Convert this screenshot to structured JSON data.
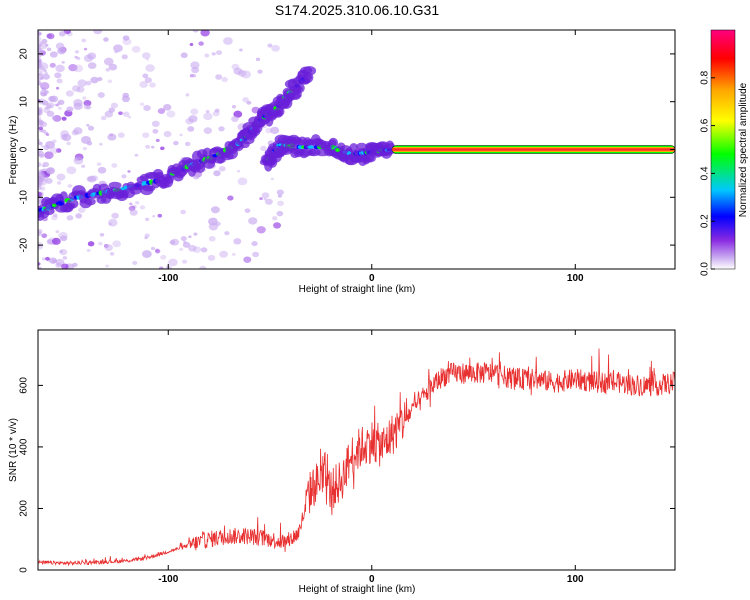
{
  "title": "S174.2025.310.06.10.G31",
  "colors": {
    "snr_line": "#e83030",
    "ridge": "#ff2a2a",
    "colorbar_stops": [
      "#ffffff",
      "#c8a8f0",
      "#8a2be2",
      "#0000ff",
      "#00c8ff",
      "#00ff00",
      "#ffff00",
      "#ffa500",
      "#ff0000",
      "#ff007f"
    ]
  },
  "chart_data": [
    {
      "type": "heatmap",
      "title": "S174.2025.310.06.10.G31",
      "xlabel": "Height of straight line (km)",
      "ylabel": "Frequency (Hz)",
      "xlim": [
        -164,
        149
      ],
      "ylim": [
        -25,
        25
      ],
      "xticks": [
        "-100",
        "0",
        "100"
      ],
      "xtick_values": [
        -100,
        0,
        100
      ],
      "yticks": [
        "20",
        "10",
        "0",
        "-10",
        "-20"
      ],
      "ytick_values": [
        20,
        10,
        0,
        -10,
        -20
      ],
      "colorbar": {
        "label": "Normalized spectral amplitude",
        "range": [
          0,
          1
        ],
        "ticks": [
          "0.0",
          "0.2",
          "0.4",
          "0.6",
          "0.8"
        ],
        "tick_values": [
          0.0,
          0.2,
          0.4,
          0.6,
          0.8
        ]
      },
      "ridge_segments": [
        {
          "name": "lower branch",
          "x": [
            -164,
            -145,
            -125,
            -105,
            -90,
            -75,
            -63
          ],
          "y": [
            -13,
            -10,
            -8.5,
            -6.5,
            -3.5,
            -1,
            2
          ]
        },
        {
          "name": "rising branch",
          "x": [
            -63,
            -55,
            -48,
            -40,
            -30
          ],
          "y": [
            2,
            6,
            8,
            12,
            16
          ]
        },
        {
          "name": "central branch",
          "x": [
            -52,
            -45,
            -35,
            -20,
            -10,
            0,
            10
          ],
          "y": [
            -3,
            1,
            0.5,
            0.5,
            -1,
            -0.5,
            0
          ]
        },
        {
          "name": "flat tone",
          "x": [
            10,
            149
          ],
          "y": [
            0,
            0
          ]
        }
      ]
    },
    {
      "type": "line",
      "xlabel": "Height of straight line (km)",
      "ylabel": "SNR (10 * v/v)",
      "xlim": [
        -164,
        149
      ],
      "ylim": [
        0,
        780
      ],
      "xticks": [
        "-100",
        "0",
        "100"
      ],
      "xtick_values": [
        -100,
        0,
        100
      ],
      "yticks": [
        "0",
        "200",
        "400",
        "600"
      ],
      "ytick_values": [
        0,
        200,
        400,
        600
      ],
      "series": [
        {
          "name": "SNR",
          "x": [
            -164,
            -150,
            -135,
            -120,
            -110,
            -100,
            -90,
            -80,
            -70,
            -60,
            -50,
            -42,
            -36,
            -30,
            -25,
            -20,
            -15,
            -10,
            -5,
            0,
            5,
            10,
            15,
            20,
            25,
            30,
            35,
            40,
            50,
            60,
            70,
            80,
            90,
            100,
            110,
            120,
            130,
            140,
            149
          ],
          "y": [
            25,
            22,
            25,
            30,
            40,
            60,
            80,
            100,
            110,
            110,
            100,
            90,
            120,
            260,
            300,
            260,
            290,
            370,
            400,
            420,
            400,
            440,
            480,
            520,
            560,
            600,
            630,
            640,
            640,
            640,
            620,
            620,
            610,
            620,
            610,
            610,
            600,
            600,
            610
          ]
        }
      ]
    }
  ]
}
